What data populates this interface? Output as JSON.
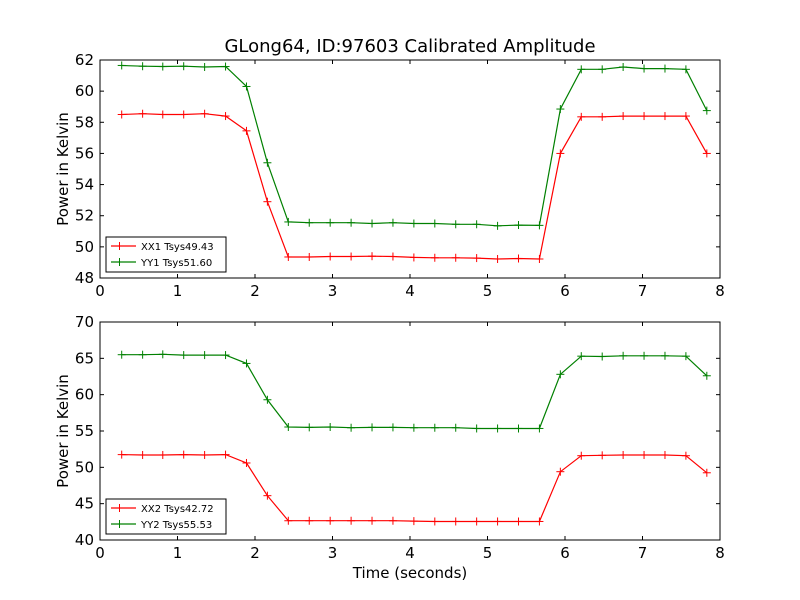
{
  "figure": {
    "title": "GLong64, ID:97603 Calibrated Amplitude",
    "xlabel": "Time (seconds)"
  },
  "chart_data": [
    {
      "type": "line",
      "xlabel": "",
      "ylabel": "Power in Kelvin",
      "xlim": [
        0,
        8
      ],
      "ylim": [
        48,
        62
      ],
      "xticks": [
        0,
        1,
        2,
        3,
        4,
        5,
        6,
        7,
        8
      ],
      "yticks": [
        48,
        50,
        52,
        54,
        56,
        58,
        60,
        62
      ],
      "grid": false,
      "legend_position": "lower-left",
      "x": [
        0.28,
        0.55,
        0.81,
        1.08,
        1.35,
        1.62,
        1.89,
        2.16,
        2.43,
        2.7,
        2.97,
        3.24,
        3.51,
        3.78,
        4.05,
        4.32,
        4.59,
        4.86,
        5.13,
        5.4,
        5.67,
        5.94,
        6.21,
        6.48,
        6.75,
        7.02,
        7.29,
        7.56,
        7.83
      ],
      "series": [
        {
          "name": "XX1 Tsys49.43",
          "color": "#ff0000",
          "values": [
            58.5,
            58.55,
            58.5,
            58.5,
            58.55,
            58.4,
            57.45,
            52.9,
            49.35,
            49.35,
            49.38,
            49.38,
            49.4,
            49.38,
            49.32,
            49.3,
            49.3,
            49.28,
            49.22,
            49.25,
            49.22,
            56.0,
            58.35,
            58.35,
            58.4,
            58.4,
            58.4,
            58.4,
            56.0
          ]
        },
        {
          "name": "YY1 Tsys51.60",
          "color": "#008000",
          "values": [
            61.65,
            61.6,
            61.58,
            61.6,
            61.55,
            61.58,
            60.3,
            55.4,
            51.6,
            51.55,
            51.55,
            51.55,
            51.5,
            51.55,
            51.5,
            51.5,
            51.45,
            51.45,
            51.35,
            51.4,
            51.38,
            58.85,
            61.4,
            61.4,
            61.55,
            61.45,
            61.45,
            61.4,
            58.75
          ]
        }
      ]
    },
    {
      "type": "line",
      "xlabel": "Time (seconds)",
      "ylabel": "Power in Kelvin",
      "xlim": [
        0,
        8
      ],
      "ylim": [
        40,
        70
      ],
      "xticks": [
        0,
        1,
        2,
        3,
        4,
        5,
        6,
        7,
        8
      ],
      "yticks": [
        40,
        45,
        50,
        55,
        60,
        65,
        70
      ],
      "grid": false,
      "legend_position": "lower-left",
      "x": [
        0.28,
        0.55,
        0.81,
        1.08,
        1.35,
        1.62,
        1.89,
        2.16,
        2.43,
        2.7,
        2.97,
        3.24,
        3.51,
        3.78,
        4.05,
        4.32,
        4.59,
        4.86,
        5.13,
        5.4,
        5.67,
        5.94,
        6.21,
        6.48,
        6.75,
        7.02,
        7.29,
        7.56,
        7.83
      ],
      "series": [
        {
          "name": "XX2 Tsys42.72",
          "color": "#ff0000",
          "values": [
            51.75,
            51.7,
            51.7,
            51.75,
            51.7,
            51.75,
            50.6,
            46.1,
            42.65,
            42.65,
            42.65,
            42.65,
            42.65,
            42.65,
            42.6,
            42.55,
            42.55,
            42.55,
            42.55,
            42.55,
            42.55,
            49.4,
            51.6,
            51.65,
            51.7,
            51.7,
            51.7,
            51.6,
            49.25
          ]
        },
        {
          "name": "YY2 Tsys55.53",
          "color": "#008000",
          "values": [
            65.5,
            65.5,
            65.55,
            65.45,
            65.45,
            65.45,
            64.3,
            59.3,
            55.55,
            55.5,
            55.55,
            55.45,
            55.5,
            55.5,
            55.45,
            55.45,
            55.45,
            55.35,
            55.35,
            55.35,
            55.35,
            62.8,
            65.3,
            65.25,
            65.35,
            65.35,
            65.35,
            65.3,
            62.6
          ]
        }
      ]
    }
  ]
}
